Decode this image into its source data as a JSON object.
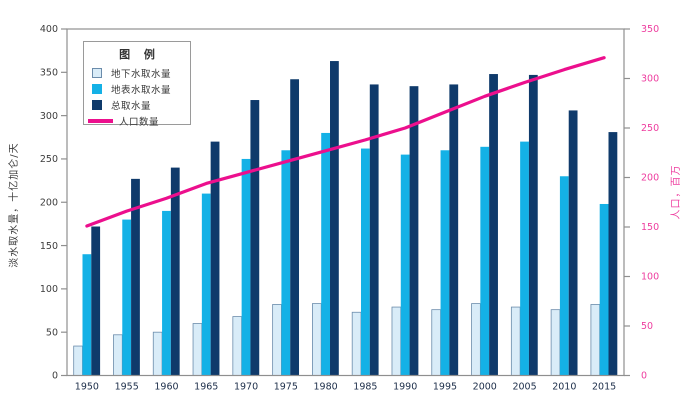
{
  "chart_data": {
    "type": "bar",
    "categories": [
      "1950",
      "1955",
      "1960",
      "1965",
      "1970",
      "1975",
      "1980",
      "1985",
      "1990",
      "1995",
      "2000",
      "2005",
      "2010",
      "2015"
    ],
    "series": [
      {
        "name": "地下水取水量",
        "type": "bar",
        "axis": "left",
        "color": "#d9ecf8",
        "border": "#6b8cab",
        "values": [
          34,
          47,
          50,
          60,
          68,
          82,
          83,
          73,
          79,
          76,
          83,
          79,
          76,
          82
        ]
      },
      {
        "name": "地表水取水量",
        "type": "bar",
        "axis": "left",
        "color": "#14b1e6",
        "values": [
          140,
          180,
          190,
          210,
          250,
          260,
          280,
          262,
          255,
          260,
          264,
          270,
          230,
          198
        ]
      },
      {
        "name": "总取水量",
        "type": "bar",
        "axis": "left",
        "color": "#0f3a6b",
        "values": [
          172,
          227,
          240,
          270,
          318,
          342,
          363,
          336,
          334,
          336,
          348,
          347,
          306,
          281
        ]
      },
      {
        "name": "人口数量",
        "type": "line",
        "axis": "right",
        "color": "#ec0f8d",
        "values": [
          151,
          166,
          179,
          194,
          205,
          216,
          227,
          238,
          250,
          266,
          282,
          296,
          309,
          321
        ]
      }
    ],
    "left_axis": {
      "label": "淡水取水量，十亿加仑/天",
      "min": 0,
      "max": 400,
      "ticks": [
        0,
        50,
        100,
        150,
        200,
        250,
        300,
        350,
        400
      ],
      "text_color": "#3d3d3d"
    },
    "right_axis": {
      "label": "人口，百万",
      "min": 0,
      "max": 350,
      "ticks": [
        0,
        50,
        100,
        150,
        200,
        250,
        300,
        350
      ],
      "text_color": "#ee3d9f"
    },
    "legend": {
      "title": "图 例"
    },
    "frame_color": "#8f8f8f",
    "grid": false,
    "legend_position": "top-left-inside"
  }
}
